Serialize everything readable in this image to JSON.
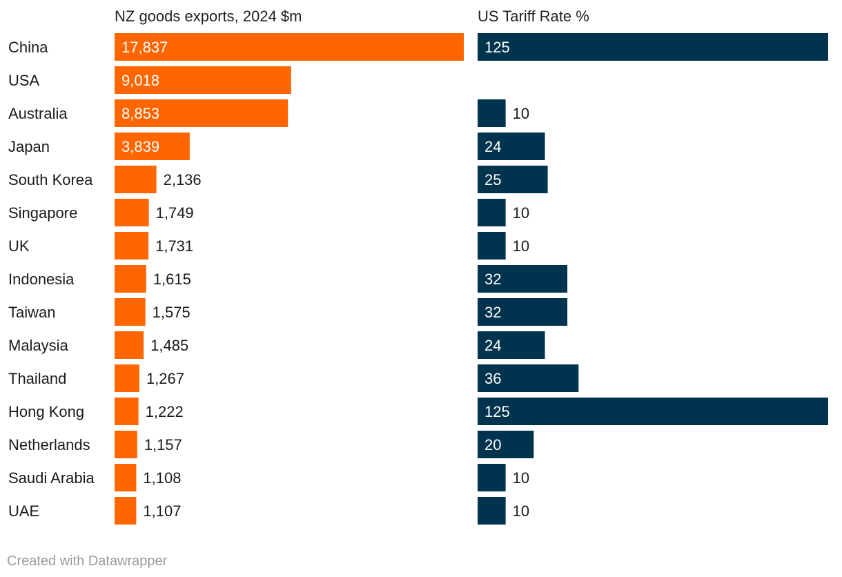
{
  "chart_data": {
    "type": "bar",
    "orientation": "horizontal",
    "categories": [
      "China",
      "USA",
      "Australia",
      "Japan",
      "South Korea",
      "Singapore",
      "UK",
      "Indonesia",
      "Taiwan",
      "Malaysia",
      "Thailand",
      "Hong Kong",
      "Netherlands",
      "Saudi Arabia",
      "UAE"
    ],
    "series": [
      {
        "name": "NZ goods exports, 2024 $m",
        "color": "#ff6600",
        "values": [
          17837,
          9018,
          8853,
          3839,
          2136,
          1749,
          1731,
          1615,
          1575,
          1485,
          1267,
          1222,
          1157,
          1108,
          1107
        ],
        "labels": [
          "17,837",
          "9,018",
          "8,853",
          "3,839",
          "2,136",
          "1,749",
          "1,731",
          "1,615",
          "1,575",
          "1,485",
          "1,267",
          "1,222",
          "1,157",
          "1,108",
          "1,107"
        ],
        "xlim": [
          0,
          17837
        ]
      },
      {
        "name": "US Tariff Rate %",
        "color": "#00334e",
        "values": [
          125,
          null,
          10,
          24,
          25,
          10,
          10,
          32,
          32,
          24,
          36,
          125,
          20,
          10,
          10
        ],
        "labels": [
          "125",
          "",
          "10",
          "24",
          "25",
          "10",
          "10",
          "32",
          "32",
          "24",
          "36",
          "125",
          "20",
          "10",
          "10"
        ],
        "xlim": [
          0,
          125
        ]
      }
    ]
  },
  "footer": {
    "credit": "Created with Datawrapper"
  }
}
